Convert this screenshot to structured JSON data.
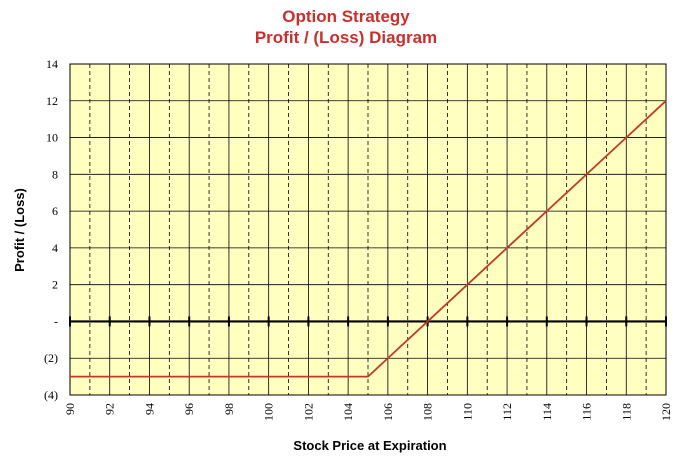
{
  "chart_data": {
    "type": "line",
    "title": "Option Strategy",
    "subtitle": "Profit / (Loss) Diagram",
    "xlabel": "Stock Price at Expiration",
    "ylabel": "Profit / (Loss)",
    "xlim": [
      90,
      120
    ],
    "ylim": [
      -4,
      14
    ],
    "x_ticks": [
      90,
      92,
      94,
      96,
      98,
      100,
      102,
      104,
      106,
      108,
      110,
      112,
      114,
      116,
      118,
      120
    ],
    "y_ticks": [
      {
        "value": -4,
        "label": "(4)"
      },
      {
        "value": -2,
        "label": "(2)"
      },
      {
        "value": 0,
        "label": "-"
      },
      {
        "value": 2,
        "label": "2"
      },
      {
        "value": 4,
        "label": "4"
      },
      {
        "value": 6,
        "label": "6"
      },
      {
        "value": 8,
        "label": "8"
      },
      {
        "value": 10,
        "label": "10"
      },
      {
        "value": 12,
        "label": "12"
      },
      {
        "value": 14,
        "label": "14"
      }
    ],
    "grid": true,
    "series": [
      {
        "points": [
          {
            "x": 90,
            "y": -3
          },
          {
            "x": 105,
            "y": -3
          },
          {
            "x": 108,
            "y": 0
          },
          {
            "x": 120,
            "y": 12
          }
        ]
      }
    ],
    "colors": {
      "plot_background": "#ffffc0",
      "line": "#c0392b",
      "title": "#c8302e",
      "grid": "#000000"
    }
  }
}
